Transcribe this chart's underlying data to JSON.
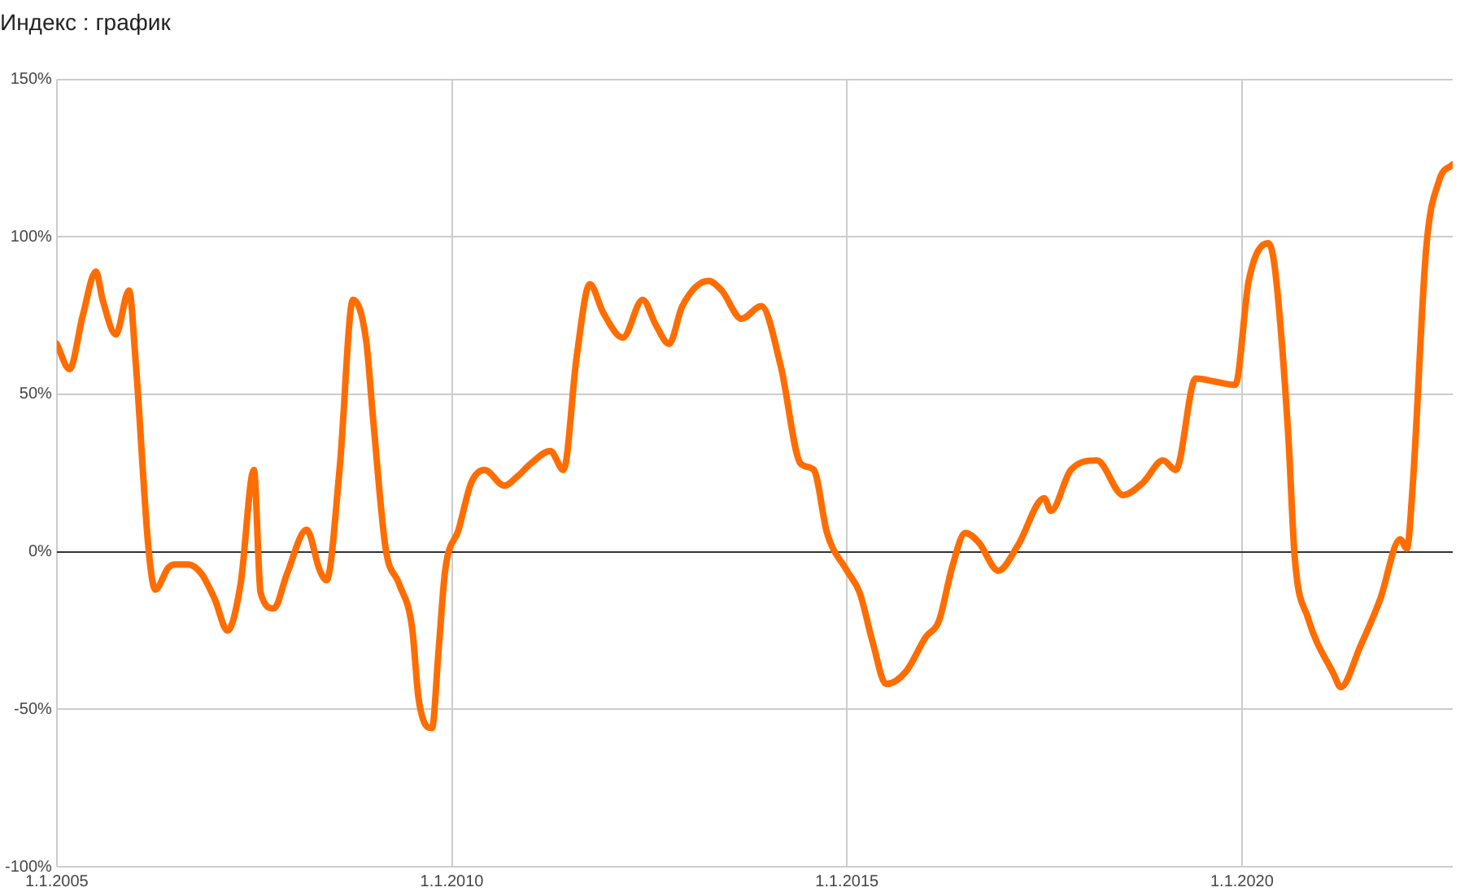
{
  "chart_data": {
    "type": "line",
    "title": "Индекс : график",
    "x": [
      "2005-01",
      "2005-03",
      "2005-05",
      "2005-07",
      "2005-08",
      "2005-10",
      "2005-12",
      "2006-01",
      "2006-03",
      "2006-04",
      "2006-06",
      "2006-07",
      "2006-09",
      "2006-11",
      "2007-01",
      "2007-03",
      "2007-05",
      "2007-07",
      "2007-08",
      "2007-10",
      "2007-12",
      "2008-03",
      "2008-05",
      "2008-06",
      "2008-08",
      "2008-10",
      "2008-12",
      "2009-01",
      "2009-03",
      "2009-05",
      "2009-07",
      "2009-08",
      "2009-10",
      "2009-11",
      "2009-12",
      "2010-02",
      "2010-04",
      "2010-06",
      "2010-09",
      "2010-11",
      "2011-01",
      "2011-04",
      "2011-06",
      "2011-08",
      "2011-10",
      "2011-12",
      "2012-03",
      "2012-06",
      "2012-08",
      "2012-10",
      "2012-12",
      "2013-04",
      "2013-06",
      "2013-09",
      "2013-12",
      "2014-03",
      "2014-06",
      "2014-08",
      "2014-10",
      "2015-01",
      "2015-03",
      "2015-05",
      "2015-07",
      "2015-10",
      "2016-01",
      "2016-03",
      "2016-05",
      "2016-07",
      "2016-09",
      "2016-12",
      "2017-03",
      "2017-07",
      "2017-08",
      "2017-11",
      "2018-03",
      "2018-07",
      "2018-10",
      "2019-01",
      "2019-03",
      "2019-06",
      "2019-09",
      "2019-12",
      "2020-02",
      "2020-05",
      "2020-06",
      "2020-08",
      "2020-09",
      "2020-11",
      "2021-03",
      "2021-04",
      "2021-07",
      "2021-10",
      "2022-01",
      "2022-02",
      "2022-03",
      "2022-05",
      "2022-07",
      "2022-09"
    ],
    "series": [
      {
        "color": "#ff6d00",
        "values": [
          66,
          58,
          75,
          89,
          80,
          69,
          83,
          60,
          1,
          -12,
          -5,
          -4,
          -4,
          -7,
          -15,
          -25,
          -10,
          26,
          -13,
          -18,
          -7,
          7,
          -6,
          -9,
          27,
          80,
          67,
          43,
          1,
          -10,
          -24,
          -47,
          -56,
          -31,
          -6,
          7,
          22,
          26,
          21,
          24,
          28,
          32,
          26,
          62,
          85,
          76,
          68,
          80,
          72,
          66,
          78,
          86,
          83,
          74,
          78,
          59,
          28,
          26,
          6,
          -6,
          -13,
          -29,
          -42,
          -38,
          -27,
          -22,
          -5,
          6,
          3,
          -6,
          2,
          17,
          13,
          26,
          29,
          18,
          22,
          29,
          26,
          55,
          54,
          53,
          86,
          98,
          90,
          38,
          -2,
          -21,
          -39,
          -43,
          -30,
          -15,
          4,
          1,
          22,
          96,
          118,
          123
        ]
      }
    ],
    "xlim": [
      "2005-01-01",
      "2022-09-01"
    ],
    "xticks": [
      {
        "value": "2005-01-01",
        "label": "1.1.2005"
      },
      {
        "value": "2010-01-01",
        "label": "1.1.2010"
      },
      {
        "value": "2015-01-01",
        "label": "1.1.2015"
      },
      {
        "value": "2020-01-01",
        "label": "1.1.2020"
      }
    ],
    "ylim": [
      -100,
      150
    ],
    "yticks": [
      {
        "value": -100,
        "label": "-100%"
      },
      {
        "value": -50,
        "label": "-50%"
      },
      {
        "value": 0,
        "label": "0%"
      },
      {
        "value": 50,
        "label": "50%"
      },
      {
        "value": 100,
        "label": "100%"
      },
      {
        "value": 150,
        "label": "150%"
      }
    ],
    "grid": true,
    "legend": false,
    "marker": "none",
    "line_style": "solid"
  }
}
